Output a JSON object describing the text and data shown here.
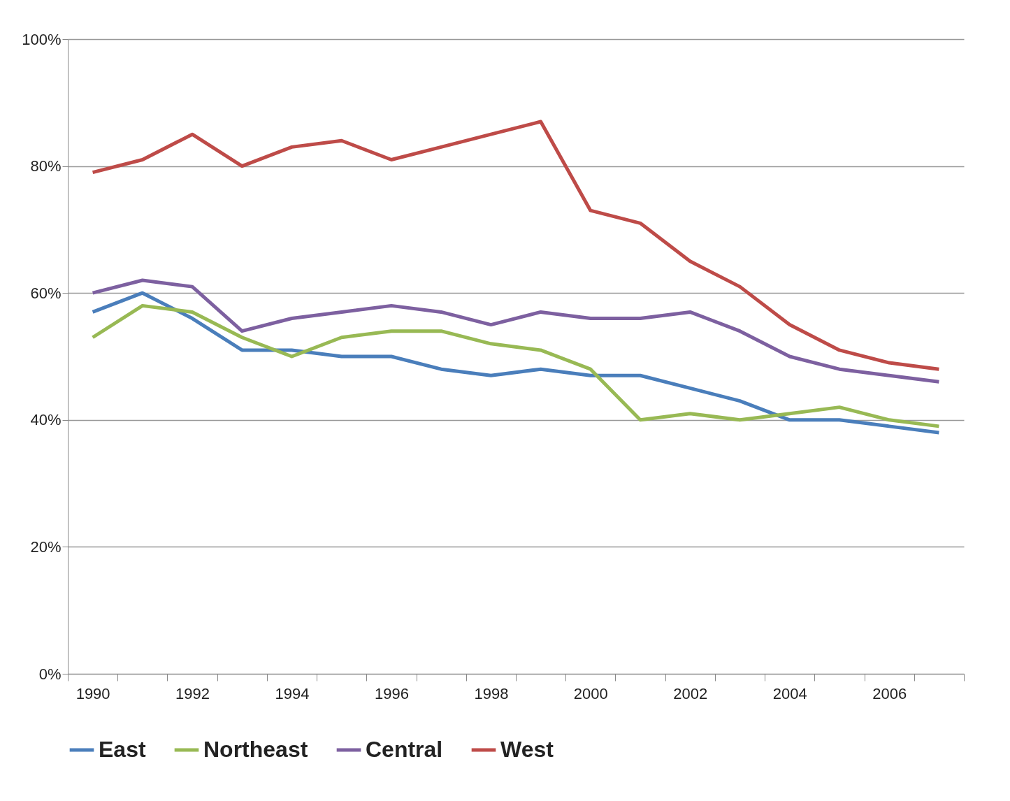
{
  "chart_data": {
    "type": "line",
    "categories": [
      "1990",
      null,
      "1992",
      null,
      "1994",
      null,
      "1996",
      null,
      "1998",
      null,
      "2000",
      null,
      "2002",
      null,
      "2004",
      null,
      "2006",
      null
    ],
    "series": [
      {
        "name": "East",
        "color": "#4a7ebb",
        "values": [
          57,
          60,
          56,
          51,
          51,
          50,
          50,
          48,
          47,
          48,
          47,
          47,
          45,
          43,
          40,
          40,
          39,
          38
        ]
      },
      {
        "name": "Northeast",
        "color": "#98b954",
        "values": [
          53,
          58,
          57,
          53,
          50,
          53,
          54,
          54,
          52,
          51,
          48,
          40,
          41,
          40,
          41,
          42,
          40,
          39
        ]
      },
      {
        "name": "Central",
        "color": "#7d60a0",
        "values": [
          60,
          62,
          61,
          54,
          56,
          57,
          58,
          57,
          55,
          57,
          56,
          56,
          57,
          54,
          50,
          48,
          47,
          46
        ]
      },
      {
        "name": "West",
        "color": "#be4b48",
        "values": [
          79,
          81,
          85,
          80,
          83,
          84,
          81,
          83,
          85,
          87,
          73,
          71,
          65,
          61,
          55,
          51,
          49,
          48
        ]
      }
    ],
    "ylim": [
      0,
      100
    ],
    "yticks": [
      {
        "value": 0,
        "label": "0%"
      },
      {
        "value": 20,
        "label": "20%"
      },
      {
        "value": 40,
        "label": "40%"
      },
      {
        "value": 60,
        "label": "60%"
      },
      {
        "value": 80,
        "label": "80%"
      },
      {
        "value": 100,
        "label": "100%"
      }
    ],
    "grid": "y",
    "legend": "bottom"
  }
}
